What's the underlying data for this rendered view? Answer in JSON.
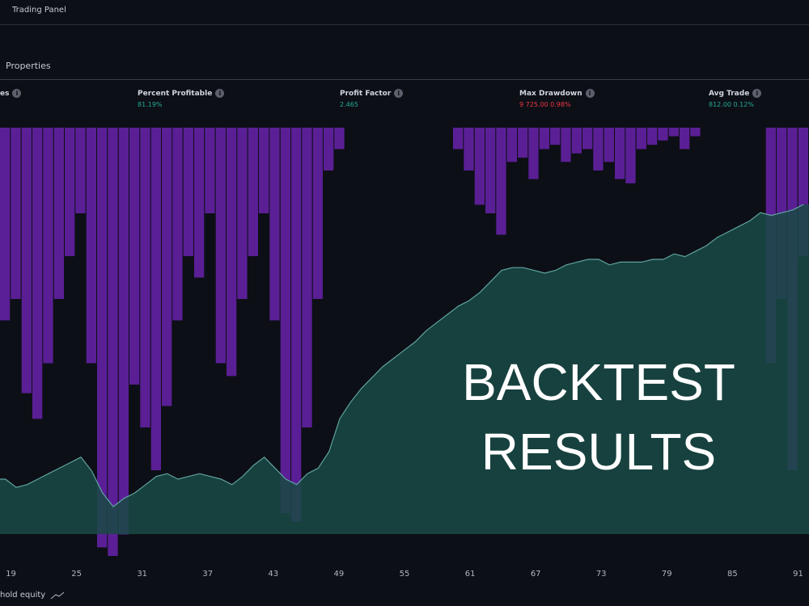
{
  "header": {
    "panel_title": "Trading Panel"
  },
  "tabs": {
    "active_label": "Properties"
  },
  "metrics": [
    {
      "label": "es",
      "value": ""
    },
    {
      "label": "Percent Profitable",
      "value": "81.19%",
      "color": "#22ab94"
    },
    {
      "label": "Profit Factor",
      "value": "2.465",
      "color": "#22ab94"
    },
    {
      "label": "Max Drawdown",
      "value": "9 725.00  0.98%",
      "color": "#f23645"
    },
    {
      "label": "Avg Trade",
      "value": "812.00  0.12%",
      "color": "#22ab94"
    }
  ],
  "overlay": {
    "line1": "BACKTEST",
    "line2": "RESULTS"
  },
  "footer": {
    "legend_label": "hold equity"
  },
  "colors": {
    "equity_fill": "#1a4a45",
    "equity_line": "#5fa3a0",
    "drawdown": "#5a1f95",
    "background": "#0d0f16"
  },
  "chart_data": {
    "type": "area",
    "xticks": [
      "19",
      "25",
      "31",
      "37",
      "43",
      "49",
      "55",
      "61",
      "67",
      "73",
      "79",
      "85",
      "91"
    ],
    "x_range": [
      18,
      92
    ],
    "equity_series": [
      0.2,
      0.17,
      0.18,
      0.2,
      0.22,
      0.24,
      0.26,
      0.28,
      0.23,
      0.15,
      0.1,
      0.13,
      0.15,
      0.18,
      0.21,
      0.22,
      0.2,
      0.21,
      0.22,
      0.21,
      0.2,
      0.18,
      0.21,
      0.25,
      0.28,
      0.24,
      0.2,
      0.18,
      0.22,
      0.24,
      0.3,
      0.42,
      0.48,
      0.53,
      0.57,
      0.61,
      0.64,
      0.67,
      0.7,
      0.74,
      0.77,
      0.8,
      0.83,
      0.85,
      0.88,
      0.92,
      0.96,
      0.97,
      0.97,
      0.96,
      0.95,
      0.96,
      0.98,
      0.99,
      1.0,
      1.0,
      0.98,
      0.99,
      0.99,
      0.99,
      1.0,
      1.0,
      1.02,
      1.01,
      1.03,
      1.05,
      1.08,
      1.1,
      1.12,
      1.14,
      1.17,
      1.16,
      1.17,
      1.18,
      1.2
    ],
    "drawdown_series": [
      0.45,
      0.4,
      0.62,
      0.68,
      0.55,
      0.4,
      0.3,
      0.2,
      0.55,
      0.98,
      1.0,
      0.95,
      0.6,
      0.7,
      0.8,
      0.65,
      0.45,
      0.3,
      0.35,
      0.2,
      0.55,
      0.58,
      0.4,
      0.3,
      0.2,
      0.45,
      0.9,
      0.92,
      0.7,
      0.4,
      0.1,
      0.05,
      0.0,
      0.0,
      0.0,
      0.0,
      0.0,
      0.0,
      0.0,
      0.0,
      0.0,
      0.0,
      0.05,
      0.1,
      0.18,
      0.2,
      0.25,
      0.08,
      0.07,
      0.12,
      0.05,
      0.04,
      0.08,
      0.06,
      0.05,
      0.1,
      0.08,
      0.12,
      0.13,
      0.05,
      0.04,
      0.03,
      0.02,
      0.05,
      0.02,
      0.0,
      0.0,
      0.0,
      0.0,
      0.0,
      0.0,
      0.55,
      0.4,
      0.8,
      0.3
    ]
  }
}
